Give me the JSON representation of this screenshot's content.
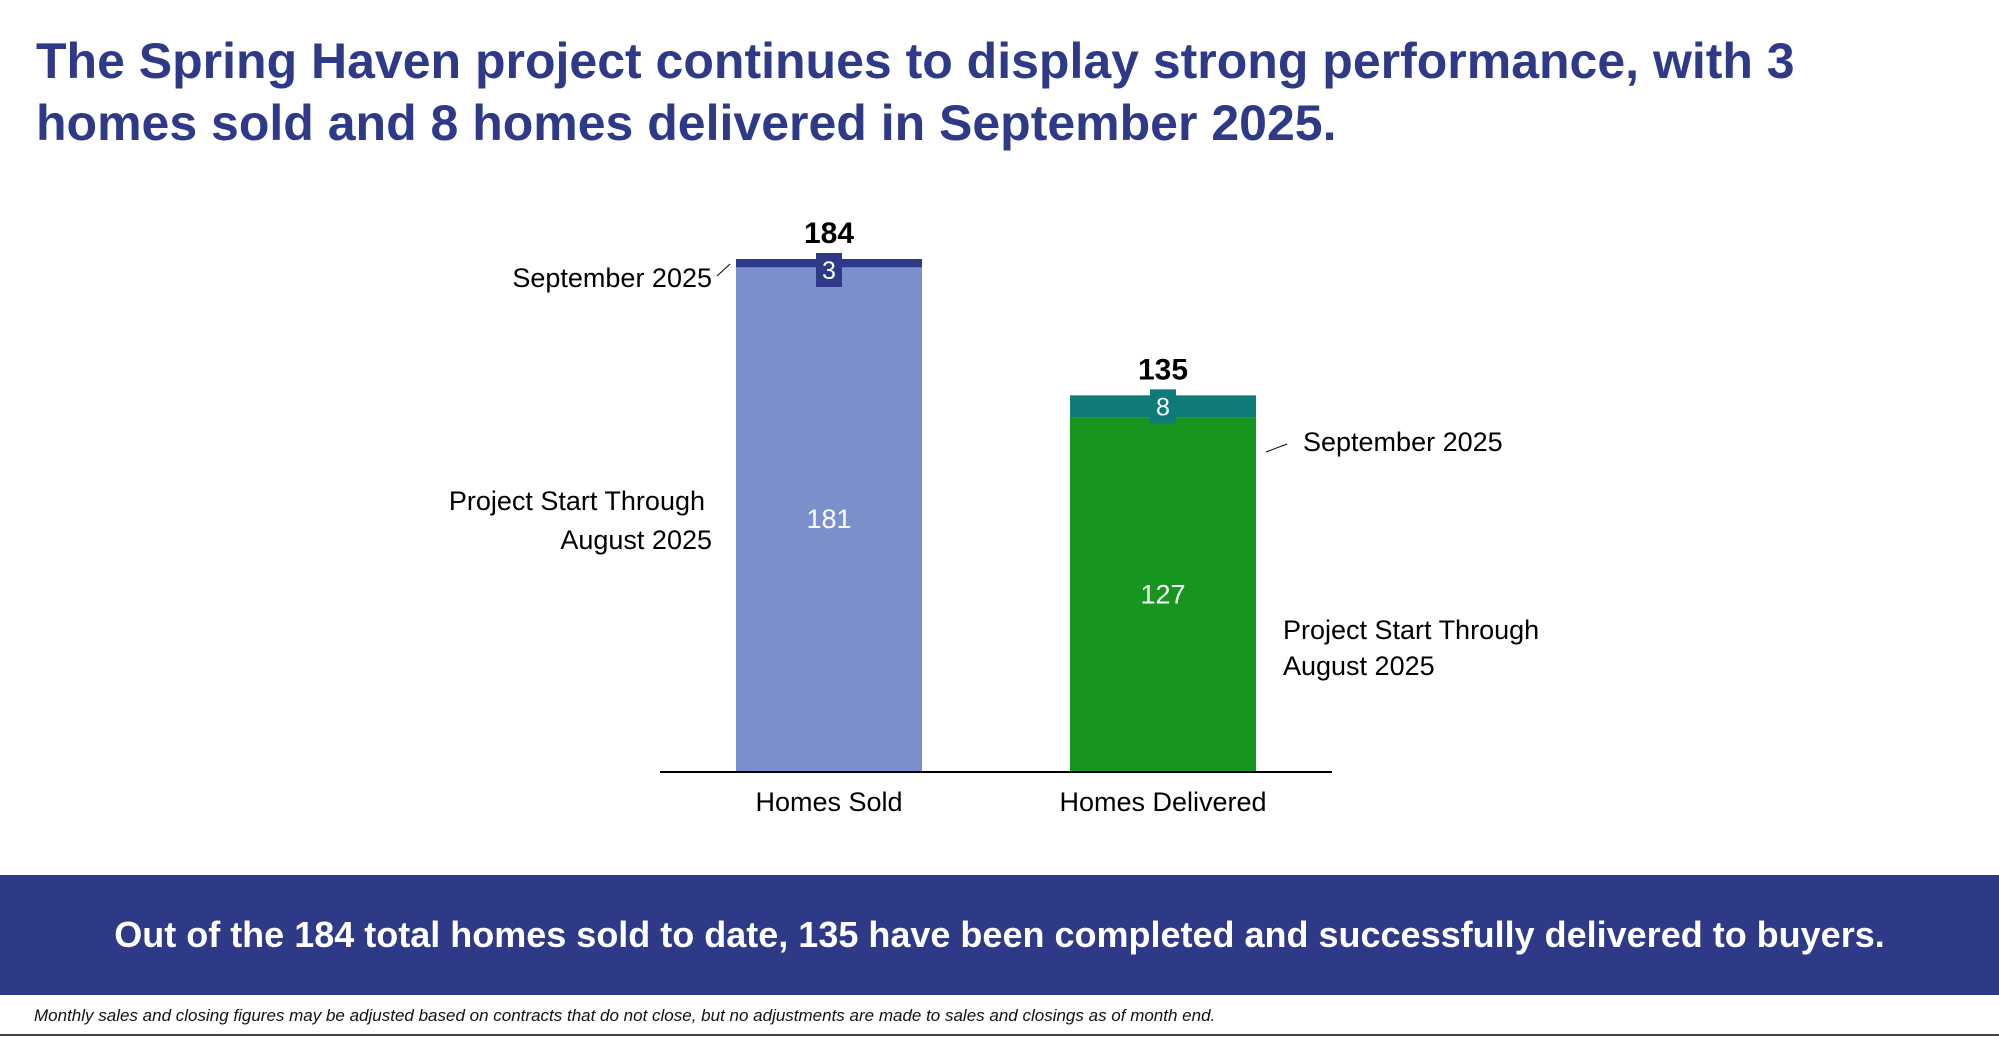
{
  "title": "The Spring Haven project continues to display strong performance, with 3 homes sold and 8 homes delivered in September 2025.",
  "banner_text": "Out of the 184 total homes sold to date, 135 have been completed and successfully delivered to buyers.",
  "footnote": "Monthly sales and closing figures may be adjusted based on contracts that do not close, but no adjustments are made to sales and closings as of month end.",
  "colors": {
    "title": "#2e3a87",
    "banner": "#2e3a87",
    "sold_base": "#7b8fca",
    "sold_month": "#2e3a87",
    "delivered_base": "#16961f",
    "delivered_month": "#0f7b78"
  },
  "chart_data": {
    "type": "bar",
    "stacked": true,
    "categories": [
      "Homes Sold",
      "Homes Delivered"
    ],
    "series": [
      {
        "name": "Project Start Through August 2025",
        "values": [
          181,
          127
        ]
      },
      {
        "name": "September 2025",
        "values": [
          3,
          8
        ]
      }
    ],
    "totals": [
      "184",
      "135"
    ],
    "segment_labels": {
      "base": [
        "181",
        "127"
      ],
      "month": [
        "3",
        "8"
      ]
    },
    "annotations": {
      "sold_month": "September 2025",
      "sold_base_line1": "Project Start Through",
      "sold_base_line2": "August 2025",
      "delivered_month": "September 2025",
      "delivered_base_line1": "Project Start Through",
      "delivered_base_line2": "August 2025"
    },
    "xlabel": "",
    "ylabel": "",
    "ylim": [
      0,
      184
    ],
    "grid": false
  }
}
